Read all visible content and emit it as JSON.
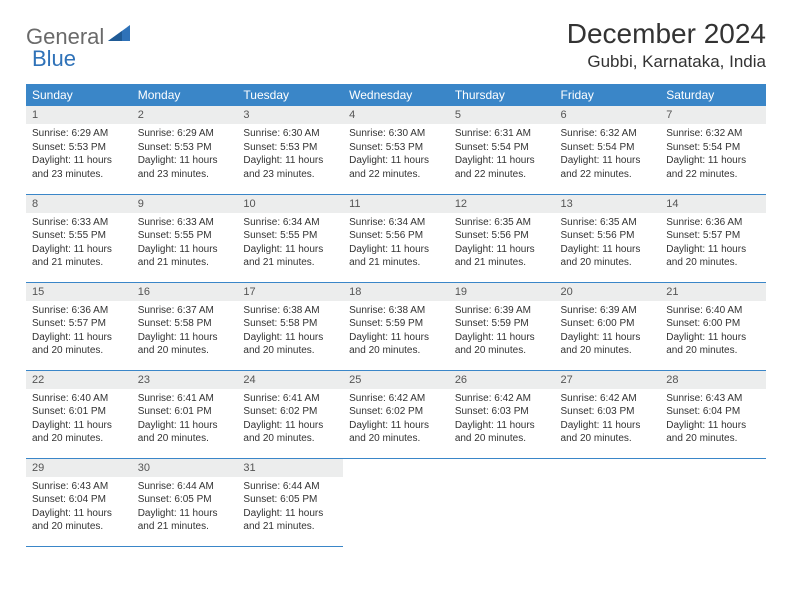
{
  "logo": {
    "general": "General",
    "blue": "Blue"
  },
  "title": "December 2024",
  "location": "Gubbi, Karnataka, India",
  "colors": {
    "header_bg": "#3a86c8",
    "header_text": "#ffffff",
    "daynum_bg": "#eceded",
    "border": "#3a86c8",
    "logo_gray": "#6a6a6a",
    "logo_blue": "#2f72b8"
  },
  "weekdays": [
    "Sunday",
    "Monday",
    "Tuesday",
    "Wednesday",
    "Thursday",
    "Friday",
    "Saturday"
  ],
  "weeks": [
    [
      {
        "n": "1",
        "sr": "Sunrise: 6:29 AM",
        "ss": "Sunset: 5:53 PM",
        "d1": "Daylight: 11 hours",
        "d2": "and 23 minutes."
      },
      {
        "n": "2",
        "sr": "Sunrise: 6:29 AM",
        "ss": "Sunset: 5:53 PM",
        "d1": "Daylight: 11 hours",
        "d2": "and 23 minutes."
      },
      {
        "n": "3",
        "sr": "Sunrise: 6:30 AM",
        "ss": "Sunset: 5:53 PM",
        "d1": "Daylight: 11 hours",
        "d2": "and 23 minutes."
      },
      {
        "n": "4",
        "sr": "Sunrise: 6:30 AM",
        "ss": "Sunset: 5:53 PM",
        "d1": "Daylight: 11 hours",
        "d2": "and 22 minutes."
      },
      {
        "n": "5",
        "sr": "Sunrise: 6:31 AM",
        "ss": "Sunset: 5:54 PM",
        "d1": "Daylight: 11 hours",
        "d2": "and 22 minutes."
      },
      {
        "n": "6",
        "sr": "Sunrise: 6:32 AM",
        "ss": "Sunset: 5:54 PM",
        "d1": "Daylight: 11 hours",
        "d2": "and 22 minutes."
      },
      {
        "n": "7",
        "sr": "Sunrise: 6:32 AM",
        "ss": "Sunset: 5:54 PM",
        "d1": "Daylight: 11 hours",
        "d2": "and 22 minutes."
      }
    ],
    [
      {
        "n": "8",
        "sr": "Sunrise: 6:33 AM",
        "ss": "Sunset: 5:55 PM",
        "d1": "Daylight: 11 hours",
        "d2": "and 21 minutes."
      },
      {
        "n": "9",
        "sr": "Sunrise: 6:33 AM",
        "ss": "Sunset: 5:55 PM",
        "d1": "Daylight: 11 hours",
        "d2": "and 21 minutes."
      },
      {
        "n": "10",
        "sr": "Sunrise: 6:34 AM",
        "ss": "Sunset: 5:55 PM",
        "d1": "Daylight: 11 hours",
        "d2": "and 21 minutes."
      },
      {
        "n": "11",
        "sr": "Sunrise: 6:34 AM",
        "ss": "Sunset: 5:56 PM",
        "d1": "Daylight: 11 hours",
        "d2": "and 21 minutes."
      },
      {
        "n": "12",
        "sr": "Sunrise: 6:35 AM",
        "ss": "Sunset: 5:56 PM",
        "d1": "Daylight: 11 hours",
        "d2": "and 21 minutes."
      },
      {
        "n": "13",
        "sr": "Sunrise: 6:35 AM",
        "ss": "Sunset: 5:56 PM",
        "d1": "Daylight: 11 hours",
        "d2": "and 20 minutes."
      },
      {
        "n": "14",
        "sr": "Sunrise: 6:36 AM",
        "ss": "Sunset: 5:57 PM",
        "d1": "Daylight: 11 hours",
        "d2": "and 20 minutes."
      }
    ],
    [
      {
        "n": "15",
        "sr": "Sunrise: 6:36 AM",
        "ss": "Sunset: 5:57 PM",
        "d1": "Daylight: 11 hours",
        "d2": "and 20 minutes."
      },
      {
        "n": "16",
        "sr": "Sunrise: 6:37 AM",
        "ss": "Sunset: 5:58 PM",
        "d1": "Daylight: 11 hours",
        "d2": "and 20 minutes."
      },
      {
        "n": "17",
        "sr": "Sunrise: 6:38 AM",
        "ss": "Sunset: 5:58 PM",
        "d1": "Daylight: 11 hours",
        "d2": "and 20 minutes."
      },
      {
        "n": "18",
        "sr": "Sunrise: 6:38 AM",
        "ss": "Sunset: 5:59 PM",
        "d1": "Daylight: 11 hours",
        "d2": "and 20 minutes."
      },
      {
        "n": "19",
        "sr": "Sunrise: 6:39 AM",
        "ss": "Sunset: 5:59 PM",
        "d1": "Daylight: 11 hours",
        "d2": "and 20 minutes."
      },
      {
        "n": "20",
        "sr": "Sunrise: 6:39 AM",
        "ss": "Sunset: 6:00 PM",
        "d1": "Daylight: 11 hours",
        "d2": "and 20 minutes."
      },
      {
        "n": "21",
        "sr": "Sunrise: 6:40 AM",
        "ss": "Sunset: 6:00 PM",
        "d1": "Daylight: 11 hours",
        "d2": "and 20 minutes."
      }
    ],
    [
      {
        "n": "22",
        "sr": "Sunrise: 6:40 AM",
        "ss": "Sunset: 6:01 PM",
        "d1": "Daylight: 11 hours",
        "d2": "and 20 minutes."
      },
      {
        "n": "23",
        "sr": "Sunrise: 6:41 AM",
        "ss": "Sunset: 6:01 PM",
        "d1": "Daylight: 11 hours",
        "d2": "and 20 minutes."
      },
      {
        "n": "24",
        "sr": "Sunrise: 6:41 AM",
        "ss": "Sunset: 6:02 PM",
        "d1": "Daylight: 11 hours",
        "d2": "and 20 minutes."
      },
      {
        "n": "25",
        "sr": "Sunrise: 6:42 AM",
        "ss": "Sunset: 6:02 PM",
        "d1": "Daylight: 11 hours",
        "d2": "and 20 minutes."
      },
      {
        "n": "26",
        "sr": "Sunrise: 6:42 AM",
        "ss": "Sunset: 6:03 PM",
        "d1": "Daylight: 11 hours",
        "d2": "and 20 minutes."
      },
      {
        "n": "27",
        "sr": "Sunrise: 6:42 AM",
        "ss": "Sunset: 6:03 PM",
        "d1": "Daylight: 11 hours",
        "d2": "and 20 minutes."
      },
      {
        "n": "28",
        "sr": "Sunrise: 6:43 AM",
        "ss": "Sunset: 6:04 PM",
        "d1": "Daylight: 11 hours",
        "d2": "and 20 minutes."
      }
    ],
    [
      {
        "n": "29",
        "sr": "Sunrise: 6:43 AM",
        "ss": "Sunset: 6:04 PM",
        "d1": "Daylight: 11 hours",
        "d2": "and 20 minutes."
      },
      {
        "n": "30",
        "sr": "Sunrise: 6:44 AM",
        "ss": "Sunset: 6:05 PM",
        "d1": "Daylight: 11 hours",
        "d2": "and 21 minutes."
      },
      {
        "n": "31",
        "sr": "Sunrise: 6:44 AM",
        "ss": "Sunset: 6:05 PM",
        "d1": "Daylight: 11 hours",
        "d2": "and 21 minutes."
      },
      null,
      null,
      null,
      null
    ]
  ]
}
